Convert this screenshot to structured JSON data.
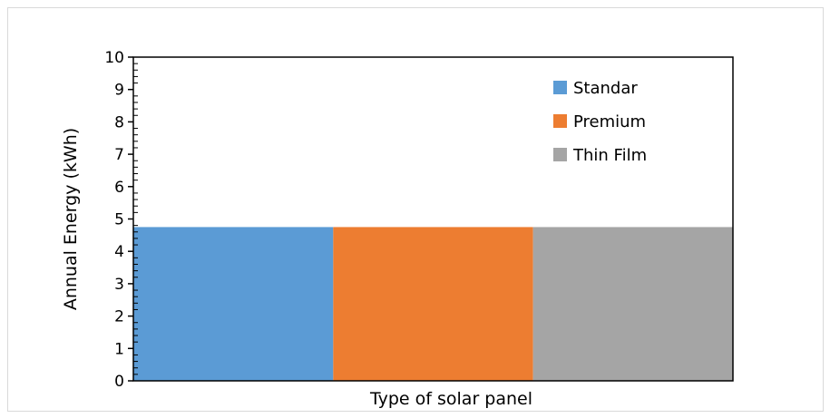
{
  "chart_data": {
    "type": "bar",
    "title": "",
    "xlabel": "Type of solar panel",
    "ylabel": "Annual Energy (kWh)",
    "ylim": [
      0,
      10
    ],
    "yticks": [
      0,
      1,
      2,
      3,
      4,
      5,
      6,
      7,
      8,
      9,
      10
    ],
    "grid": false,
    "legend_position": "top-right",
    "categories": [
      ""
    ],
    "series": [
      {
        "name": "Standar",
        "values": [
          4.75
        ],
        "color": "#5b9bd5"
      },
      {
        "name": "Premium",
        "values": [
          4.75
        ],
        "color": "#ed7d31"
      },
      {
        "name": "Thin Film",
        "values": [
          4.75
        ],
        "color": "#a5a5a5"
      }
    ]
  }
}
